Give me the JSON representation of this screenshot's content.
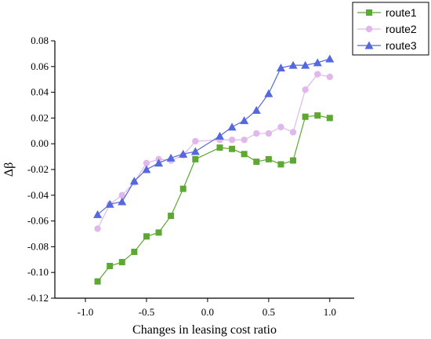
{
  "chart_data": {
    "type": "line",
    "xlabel": "Changes in leasing cost ratio",
    "ylabel": "Δβ",
    "xlim": [
      -1.25,
      1.2
    ],
    "ylim": [
      -0.12,
      0.08
    ],
    "xticks": [
      -1.0,
      -0.5,
      0.0,
      0.5,
      1.0
    ],
    "xtick_labels": [
      "-1.0",
      "-0.5",
      "0.0",
      "0.5",
      "1.0"
    ],
    "yticks": [
      -0.12,
      -0.1,
      -0.08,
      -0.06,
      -0.04,
      -0.02,
      0.0,
      0.02,
      0.04,
      0.06,
      0.08
    ],
    "ytick_labels": [
      "-0.12",
      "-0.10",
      "-0.08",
      "-0.06",
      "-0.04",
      "-0.02",
      "0.00",
      "0.02",
      "0.04",
      "0.06",
      "0.08"
    ],
    "grid": false,
    "legend_position": "top-right",
    "x": [
      -0.9,
      -0.8,
      -0.7,
      -0.6,
      -0.5,
      -0.4,
      -0.3,
      -0.2,
      -0.1,
      0.1,
      0.2,
      0.3,
      0.4,
      0.5,
      0.6,
      0.7,
      0.8,
      0.9,
      1.0
    ],
    "series": [
      {
        "name": "route1",
        "color": "#5ca832",
        "marker": "square",
        "values": [
          -0.107,
          -0.095,
          -0.092,
          -0.084,
          -0.072,
          -0.069,
          -0.056,
          -0.035,
          -0.012,
          -0.003,
          -0.004,
          -0.008,
          -0.014,
          -0.012,
          -0.016,
          -0.013,
          0.021,
          0.022,
          0.02
        ]
      },
      {
        "name": "route2",
        "color": "#e0b8ec",
        "marker": "circle",
        "values": [
          -0.066,
          -0.047,
          -0.04,
          -0.03,
          -0.015,
          -0.012,
          -0.013,
          -0.009,
          0.002,
          0.003,
          0.003,
          0.003,
          0.008,
          0.008,
          0.013,
          0.009,
          0.042,
          0.054,
          0.052
        ]
      },
      {
        "name": "route3",
        "color": "#5568e0",
        "marker": "triangle",
        "values": [
          -0.055,
          -0.047,
          -0.045,
          -0.029,
          -0.02,
          -0.015,
          -0.011,
          -0.008,
          -0.006,
          0.006,
          0.013,
          0.018,
          0.026,
          0.039,
          0.059,
          0.061,
          0.061,
          0.063,
          0.066
        ]
      }
    ]
  }
}
